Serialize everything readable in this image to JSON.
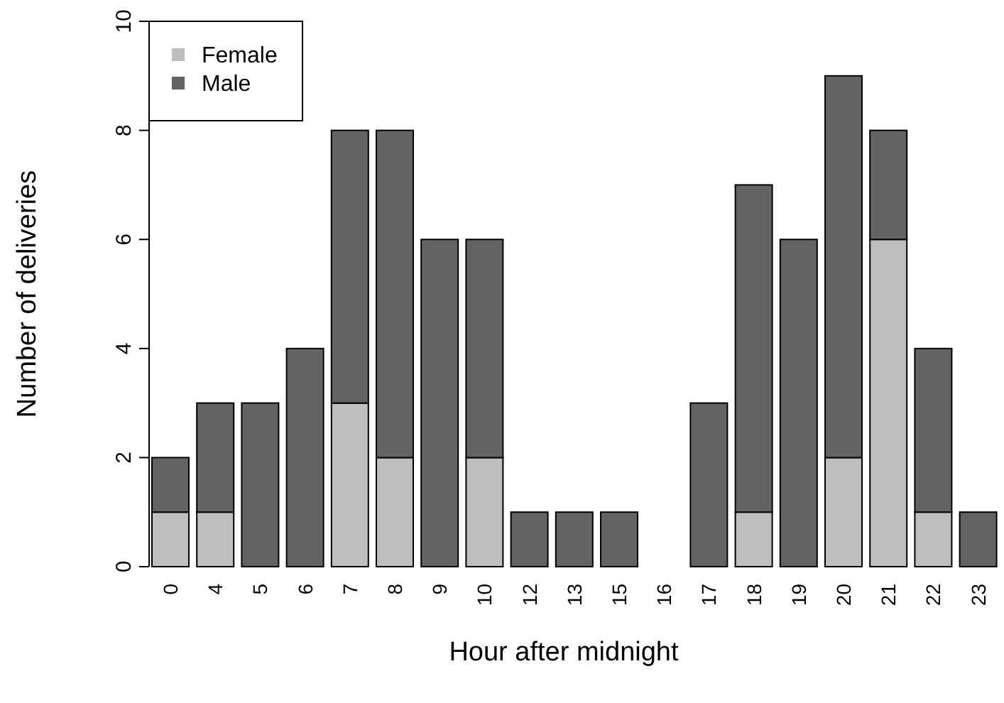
{
  "chart_data": {
    "type": "bar",
    "stacked": true,
    "xlabel": "Hour after midnight",
    "ylabel": "Number of deliveries",
    "categories": [
      "0",
      "4",
      "5",
      "6",
      "7",
      "8",
      "9",
      "10",
      "12",
      "13",
      "15",
      "16",
      "17",
      "18",
      "19",
      "20",
      "21",
      "22",
      "23"
    ],
    "series": [
      {
        "name": "Female",
        "color": "#bebebe",
        "values": [
          1,
          1,
          0,
          0,
          3,
          2,
          0,
          2,
          0,
          0,
          0,
          0,
          0,
          1,
          0,
          2,
          6,
          1,
          0
        ]
      },
      {
        "name": "Male",
        "color": "#636363",
        "values": [
          1,
          2,
          3,
          4,
          5,
          6,
          6,
          4,
          1,
          1,
          1,
          0,
          3,
          6,
          6,
          7,
          2,
          3,
          1
        ]
      }
    ],
    "ylim": [
      0,
      10
    ],
    "yticks": [
      0,
      2,
      4,
      6,
      8,
      10
    ],
    "legend": "top left",
    "grid": false
  }
}
